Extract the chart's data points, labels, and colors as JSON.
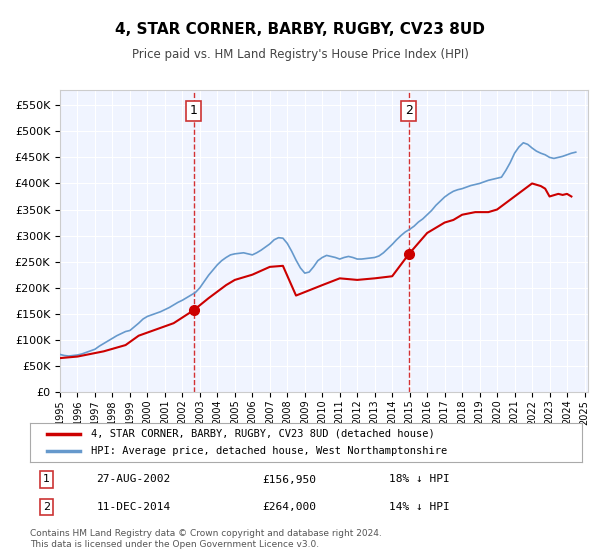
{
  "title": "4, STAR CORNER, BARBY, RUGBY, CV23 8UD",
  "subtitle": "Price paid vs. HM Land Registry's House Price Index (HPI)",
  "legend_line1": "4, STAR CORNER, BARBY, RUGBY, CV23 8UD (detached house)",
  "legend_line2": "HPI: Average price, detached house, West Northamptonshire",
  "sale1_label": "1",
  "sale1_date": "27-AUG-2002",
  "sale1_price": "£156,950",
  "sale1_hpi": "18% ↓ HPI",
  "sale1_x": 2002.65,
  "sale1_y": 156950,
  "sale2_label": "2",
  "sale2_date": "11-DEC-2014",
  "sale2_price": "£264,000",
  "sale2_hpi": "14% ↓ HPI",
  "sale2_x": 2014.94,
  "sale2_y": 264000,
  "vline1_x": 2002.65,
  "vline2_x": 2014.94,
  "ylim": [
    0,
    580000
  ],
  "xlim_start": 1995.0,
  "xlim_end": 2025.2,
  "price_color": "#cc0000",
  "hpi_color": "#6699cc",
  "vline_color": "#cc0000",
  "background_color": "#f0f4ff",
  "plot_bg": "#ffffff",
  "footer_text": "Contains HM Land Registry data © Crown copyright and database right 2024.\nThis data is licensed under the Open Government Licence v3.0.",
  "hpi_data_x": [
    1995.0,
    1995.25,
    1995.5,
    1995.75,
    1996.0,
    1996.25,
    1996.5,
    1996.75,
    1997.0,
    1997.25,
    1997.5,
    1997.75,
    1998.0,
    1998.25,
    1998.5,
    1998.75,
    1999.0,
    1999.25,
    1999.5,
    1999.75,
    2000.0,
    2000.25,
    2000.5,
    2000.75,
    2001.0,
    2001.25,
    2001.5,
    2001.75,
    2002.0,
    2002.25,
    2002.5,
    2002.75,
    2003.0,
    2003.25,
    2003.5,
    2003.75,
    2004.0,
    2004.25,
    2004.5,
    2004.75,
    2005.0,
    2005.25,
    2005.5,
    2005.75,
    2006.0,
    2006.25,
    2006.5,
    2006.75,
    2007.0,
    2007.25,
    2007.5,
    2007.75,
    2008.0,
    2008.25,
    2008.5,
    2008.75,
    2009.0,
    2009.25,
    2009.5,
    2009.75,
    2010.0,
    2010.25,
    2010.5,
    2010.75,
    2011.0,
    2011.25,
    2011.5,
    2011.75,
    2012.0,
    2012.25,
    2012.5,
    2012.75,
    2013.0,
    2013.25,
    2013.5,
    2013.75,
    2014.0,
    2014.25,
    2014.5,
    2014.75,
    2015.0,
    2015.25,
    2015.5,
    2015.75,
    2016.0,
    2016.25,
    2016.5,
    2016.75,
    2017.0,
    2017.25,
    2017.5,
    2017.75,
    2018.0,
    2018.25,
    2018.5,
    2018.75,
    2019.0,
    2019.25,
    2019.5,
    2019.75,
    2020.0,
    2020.25,
    2020.5,
    2020.75,
    2021.0,
    2021.25,
    2021.5,
    2021.75,
    2022.0,
    2022.25,
    2022.5,
    2022.75,
    2023.0,
    2023.25,
    2023.5,
    2023.75,
    2024.0,
    2024.25,
    2024.5
  ],
  "hpi_data_y": [
    72000,
    70000,
    69000,
    70000,
    71000,
    73000,
    76000,
    79000,
    82000,
    88000,
    93000,
    98000,
    103000,
    108000,
    112000,
    116000,
    118000,
    125000,
    132000,
    140000,
    145000,
    148000,
    151000,
    154000,
    158000,
    162000,
    167000,
    172000,
    176000,
    181000,
    186000,
    191000,
    200000,
    212000,
    224000,
    234000,
    244000,
    252000,
    258000,
    263000,
    265000,
    266000,
    267000,
    265000,
    263000,
    267000,
    272000,
    278000,
    284000,
    292000,
    296000,
    295000,
    285000,
    270000,
    253000,
    238000,
    228000,
    230000,
    240000,
    252000,
    258000,
    262000,
    260000,
    258000,
    255000,
    258000,
    260000,
    258000,
    255000,
    255000,
    256000,
    257000,
    258000,
    261000,
    267000,
    275000,
    283000,
    292000,
    300000,
    307000,
    312000,
    318000,
    326000,
    332000,
    340000,
    348000,
    358000,
    366000,
    374000,
    380000,
    385000,
    388000,
    390000,
    393000,
    396000,
    398000,
    400000,
    403000,
    406000,
    408000,
    410000,
    412000,
    425000,
    440000,
    458000,
    470000,
    478000,
    475000,
    468000,
    462000,
    458000,
    455000,
    450000,
    448000,
    450000,
    452000,
    455000,
    458000,
    460000
  ],
  "price_data_x": [
    1995.0,
    1996.0,
    1997.5,
    1998.75,
    1999.5,
    2001.5,
    2002.65,
    2003.5,
    2004.5,
    2005.0,
    2006.0,
    2007.0,
    2007.75,
    2008.5,
    2010.0,
    2011.0,
    2012.0,
    2013.0,
    2014.0,
    2014.94,
    2016.0,
    2017.0,
    2017.5,
    2018.0,
    2018.75,
    2019.5,
    2020.0,
    2021.0,
    2022.0,
    2022.5,
    2022.75,
    2023.0,
    2023.5,
    2023.75,
    2024.0,
    2024.25
  ],
  "price_data_y": [
    65000,
    68000,
    78000,
    90000,
    108000,
    132000,
    156950,
    180000,
    205000,
    215000,
    225000,
    240000,
    242000,
    185000,
    205000,
    218000,
    215000,
    218000,
    222000,
    264000,
    305000,
    325000,
    330000,
    340000,
    345000,
    345000,
    350000,
    375000,
    400000,
    395000,
    390000,
    375000,
    380000,
    378000,
    380000,
    375000
  ]
}
